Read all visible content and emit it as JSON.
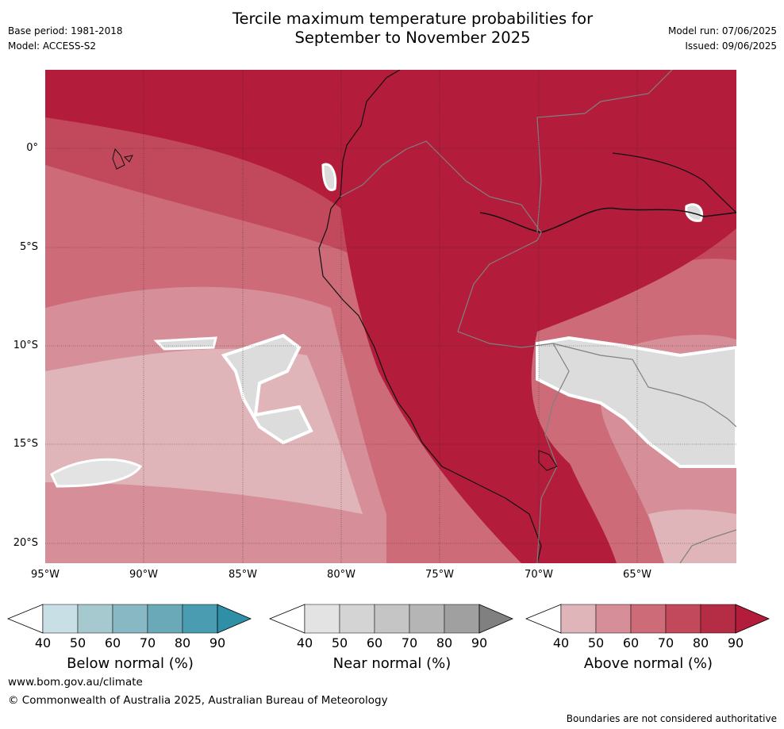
{
  "header": {
    "title_line1": "Tercile maximum temperature probabilities for",
    "title_line2": "September to November 2025",
    "base_period": "Base period: 1981-2018",
    "model": "Model: ACCESS-S2",
    "model_run": "Model run: 07/06/2025",
    "issued": "Issued: 09/06/2025"
  },
  "map": {
    "lat_labels": [
      "0°",
      "5°S",
      "10°S",
      "15°S",
      "20°S"
    ],
    "lon_labels": [
      "95°W",
      "90°W",
      "85°W",
      "80°W",
      "75°W",
      "70°W",
      "65°W"
    ],
    "colors": {
      "above_90": "#b31c3a",
      "above_80": "#c2495b",
      "above_70": "#cd6b78",
      "above_60": "#d68f98",
      "above_50": "#e0b5ba",
      "near": "#dcdcdc"
    }
  },
  "legends": [
    {
      "label": "Below normal (%)",
      "ticks": [
        "40",
        "50",
        "60",
        "70",
        "80",
        "90"
      ],
      "colors": [
        "#ffffff",
        "#c8e0e5",
        "#a6c8cf",
        "#88b8c3",
        "#6aa9b7",
        "#4a9cb0",
        "#2e8fa6"
      ]
    },
    {
      "label": "Near normal (%)",
      "ticks": [
        "40",
        "50",
        "60",
        "70",
        "80",
        "90"
      ],
      "colors": [
        "#ffffff",
        "#e3e3e3",
        "#d4d4d4",
        "#c5c5c5",
        "#b5b5b5",
        "#a0a0a0",
        "#808080"
      ]
    },
    {
      "label": "Above normal (%)",
      "ticks": [
        "40",
        "50",
        "60",
        "70",
        "80",
        "90"
      ],
      "colors": [
        "#ffffff",
        "#e0b5ba",
        "#d68f98",
        "#cd6b78",
        "#c2495b",
        "#b52d45",
        "#b31c3a"
      ]
    }
  ],
  "footer": {
    "website": "www.bom.gov.au/climate",
    "copyright": "© Commonwealth of Australia 2025, Australian Bureau of Meteorology",
    "disclaimer": "Boundaries are not considered authoritative"
  }
}
